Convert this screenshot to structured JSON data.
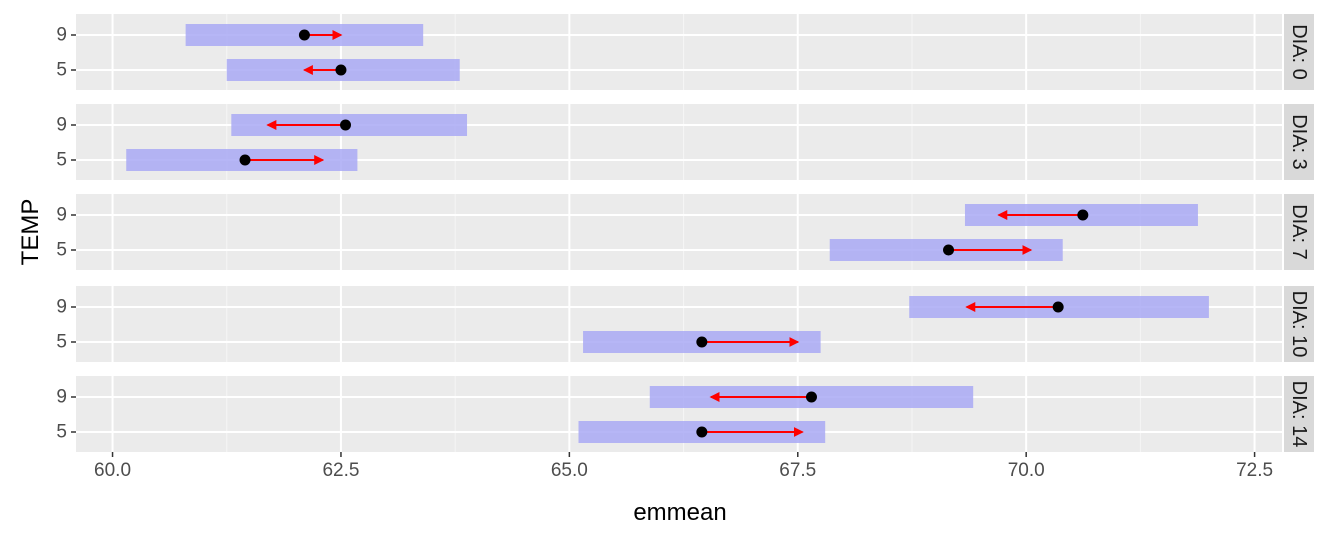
{
  "chart_data": {
    "type": "faceted-interval-plot",
    "xlabel": "emmean",
    "ylabel": "TEMP",
    "xlim": [
      59.6,
      72.8
    ],
    "x_ticks": [
      60.0,
      62.5,
      65.0,
      67.5,
      70.0,
      72.5
    ],
    "x_tick_labels": [
      "60.0",
      "62.5",
      "65.0",
      "67.5",
      "70.0",
      "72.5"
    ],
    "categories": [
      "9",
      "5"
    ],
    "grid": true,
    "colors": {
      "panel_bg": "#ebebeb",
      "strip_bg": "#d9d9d9",
      "grid_major": "#ffffff",
      "interval": "#a9a9f5",
      "point": "#000000",
      "arrow": "#ff0000"
    },
    "facets": [
      {
        "label": "DIA: 0",
        "rows": [
          {
            "temp": "9",
            "emmean": 62.1,
            "lower": 60.8,
            "upper": 63.4,
            "arrow_lower": 62.1,
            "arrow_upper": 62.5
          },
          {
            "temp": "5",
            "emmean": 62.5,
            "lower": 61.25,
            "upper": 63.8,
            "arrow_lower": 62.1,
            "arrow_upper": 62.5
          }
        ]
      },
      {
        "label": "DIA: 3",
        "rows": [
          {
            "temp": "9",
            "emmean": 62.55,
            "lower": 61.3,
            "upper": 63.88,
            "arrow_lower": 61.7,
            "arrow_upper": 62.55
          },
          {
            "temp": "5",
            "emmean": 61.45,
            "lower": 60.15,
            "upper": 62.68,
            "arrow_lower": 61.45,
            "arrow_upper": 62.3
          }
        ]
      },
      {
        "label": "DIA: 7",
        "rows": [
          {
            "temp": "9",
            "emmean": 70.62,
            "lower": 69.33,
            "upper": 71.88,
            "arrow_lower": 69.7,
            "arrow_upper": 70.62
          },
          {
            "temp": "5",
            "emmean": 69.15,
            "lower": 67.85,
            "upper": 70.4,
            "arrow_lower": 69.15,
            "arrow_upper": 70.05
          }
        ]
      },
      {
        "label": "DIA: 10",
        "rows": [
          {
            "temp": "9",
            "emmean": 70.35,
            "lower": 68.72,
            "upper": 72.0,
            "arrow_lower": 69.35,
            "arrow_upper": 70.35
          },
          {
            "temp": "5",
            "emmean": 66.45,
            "lower": 65.15,
            "upper": 67.75,
            "arrow_lower": 66.45,
            "arrow_upper": 67.5
          }
        ]
      },
      {
        "label": "DIA: 14",
        "rows": [
          {
            "temp": "9",
            "emmean": 67.65,
            "lower": 65.88,
            "upper": 69.42,
            "arrow_lower": 66.55,
            "arrow_upper": 67.65
          },
          {
            "temp": "5",
            "emmean": 66.45,
            "lower": 65.1,
            "upper": 67.8,
            "arrow_lower": 66.45,
            "arrow_upper": 67.55
          }
        ]
      }
    ]
  }
}
